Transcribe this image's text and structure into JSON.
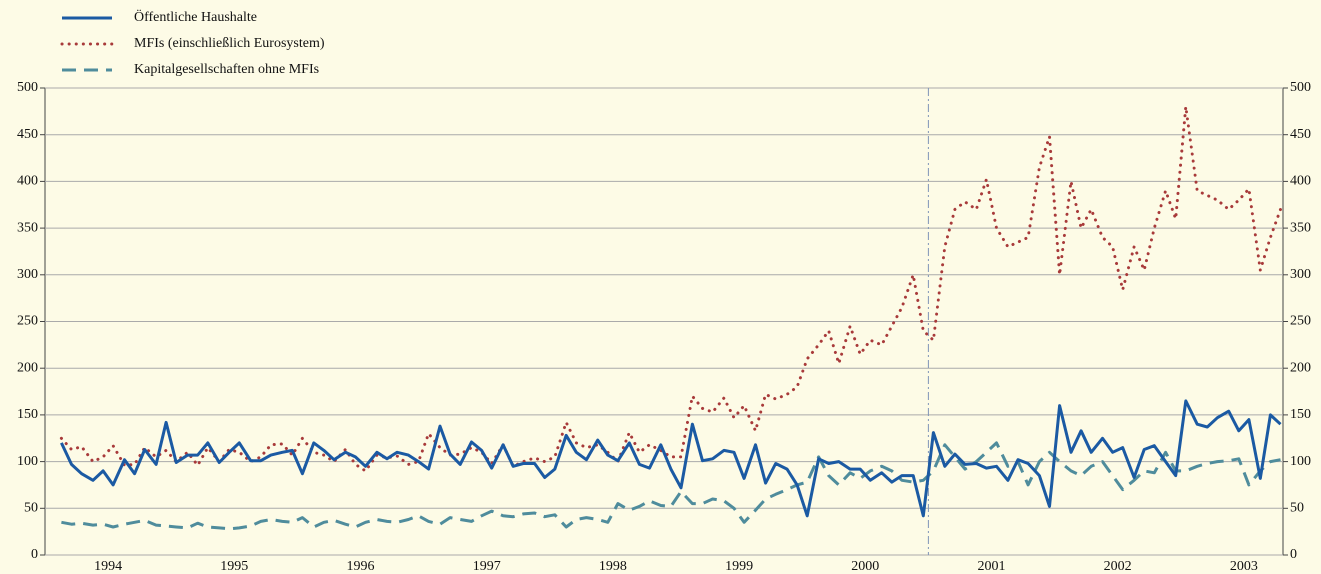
{
  "chart_data": {
    "type": "line",
    "legend": "top-left",
    "grid": true,
    "vline_x": 2001,
    "xlim": [
      1994,
      2003.81
    ],
    "xticks": [
      {
        "value": 1994.5,
        "label": "1994"
      },
      {
        "value": 1995.5,
        "label": "1995"
      },
      {
        "value": 1996.5,
        "label": "1996"
      },
      {
        "value": 1997.5,
        "label": "1997"
      },
      {
        "value": 1998.5,
        "label": "1998"
      },
      {
        "value": 1999.5,
        "label": "1999"
      },
      {
        "value": 2000.5,
        "label": "2000"
      },
      {
        "value": 2001.5,
        "label": "2001"
      },
      {
        "value": 2002.5,
        "label": "2002"
      },
      {
        "value": 2003.5,
        "label": "2003"
      }
    ],
    "ylim": [
      0,
      500
    ],
    "yticks": [
      0,
      50,
      100,
      150,
      200,
      250,
      300,
      350,
      400,
      450,
      500
    ],
    "x": [
      1994.13,
      1994.21,
      1994.29,
      1994.38,
      1994.46,
      1994.54,
      1994.63,
      1994.71,
      1994.79,
      1994.88,
      1994.96,
      1995.04,
      1995.13,
      1995.21,
      1995.29,
      1995.38,
      1995.46,
      1995.54,
      1995.63,
      1995.71,
      1995.79,
      1995.88,
      1995.96,
      1996.04,
      1996.13,
      1996.21,
      1996.29,
      1996.38,
      1996.46,
      1996.54,
      1996.63,
      1996.71,
      1996.79,
      1996.88,
      1996.96,
      1997.04,
      1997.13,
      1997.21,
      1997.29,
      1997.38,
      1997.46,
      1997.54,
      1997.63,
      1997.71,
      1997.79,
      1997.88,
      1997.96,
      1998.04,
      1998.13,
      1998.21,
      1998.29,
      1998.38,
      1998.46,
      1998.54,
      1998.63,
      1998.71,
      1998.79,
      1998.88,
      1998.96,
      1999.04,
      1999.13,
      1999.21,
      1999.29,
      1999.38,
      1999.46,
      1999.54,
      1999.63,
      1999.71,
      1999.79,
      1999.88,
      1999.96,
      2000.04,
      2000.13,
      2000.21,
      2000.29,
      2000.38,
      2000.46,
      2000.54,
      2000.63,
      2000.71,
      2000.79,
      2000.88,
      2000.96,
      2001.04,
      2001.13,
      2001.21,
      2001.29,
      2001.38,
      2001.46,
      2001.54,
      2001.63,
      2001.71,
      2001.79,
      2001.88,
      2001.96,
      2002.04,
      2002.13,
      2002.21,
      2002.29,
      2002.38,
      2002.46,
      2002.54,
      2002.63,
      2002.71,
      2002.79,
      2002.88,
      2002.96,
      2003.04,
      2003.13,
      2003.21,
      2003.29,
      2003.38,
      2003.46,
      2003.54,
      2003.63,
      2003.71,
      2003.79
    ],
    "series": [
      {
        "name": "Öffentliche Haushalte",
        "color": "#1b5aa3",
        "style": "solid",
        "values": [
          120,
          97,
          87,
          80,
          90,
          75,
          102,
          87,
          113,
          97,
          142,
          99,
          107,
          107,
          120,
          99,
          110,
          120,
          101,
          101,
          107,
          110,
          112,
          87,
          120,
          112,
          102,
          110,
          105,
          95,
          110,
          103,
          110,
          107,
          100,
          92,
          138,
          108,
          97,
          121,
          112,
          93,
          118,
          95,
          98,
          98,
          83,
          92,
          128,
          110,
          102,
          123,
          107,
          101,
          120,
          97,
          93,
          118,
          92,
          72,
          140,
          101,
          103,
          112,
          110,
          82,
          118,
          77,
          98,
          92,
          75,
          42,
          103,
          98,
          100,
          92,
          92,
          80,
          88,
          78,
          85,
          85,
          42,
          131,
          95,
          108,
          97,
          98,
          93,
          95,
          80,
          102,
          98,
          85,
          52,
          160,
          110,
          133,
          110,
          125,
          110,
          115,
          83,
          113,
          117,
          100,
          85,
          165,
          140,
          137,
          147,
          154,
          133,
          145,
          82,
          150,
          140
        ]
      },
      {
        "name": "MFIs (einschließlich Eurosystem)",
        "color": "#a83a3a",
        "style": "dotted",
        "values": [
          125,
          113,
          116,
          100,
          105,
          117,
          96,
          97,
          115,
          105,
          112,
          100,
          110,
          96,
          115,
          100,
          113,
          110,
          100,
          105,
          118,
          119,
          107,
          125,
          110,
          107,
          100,
          113,
          97,
          90,
          107,
          104,
          106,
          97,
          100,
          130,
          115,
          107,
          108,
          115,
          110,
          98,
          118,
          95,
          100,
          104,
          100,
          105,
          142,
          120,
          115,
          118,
          110,
          100,
          131,
          110,
          118,
          112,
          105,
          105,
          170,
          157,
          153,
          168,
          147,
          160,
          133,
          172,
          167,
          172,
          180,
          210,
          225,
          240,
          205,
          245,
          215,
          230,
          225,
          245,
          265,
          300,
          240,
          230,
          330,
          370,
          378,
          370,
          402,
          350,
          330,
          335,
          340,
          415,
          448,
          300,
          400,
          350,
          370,
          340,
          330,
          284,
          330,
          305,
          350,
          390,
          360,
          480,
          390,
          385,
          380,
          370,
          380,
          392,
          305,
          340,
          370
        ]
      },
      {
        "name": "Kapitalgesellschaften ohne MFIs",
        "color": "#4f8c9c",
        "style": "dashed",
        "values": [
          35,
          33,
          34,
          32,
          33,
          30,
          33,
          35,
          37,
          32,
          31,
          30,
          29,
          34,
          30,
          29,
          28,
          29,
          31,
          36,
          38,
          36,
          35,
          40,
          30,
          35,
          37,
          33,
          30,
          35,
          38,
          36,
          35,
          38,
          42,
          36,
          33,
          40,
          38,
          36,
          42,
          47,
          42,
          41,
          44,
          45,
          41,
          43,
          30,
          38,
          40,
          38,
          35,
          55,
          48,
          52,
          58,
          53,
          52,
          68,
          55,
          55,
          60,
          58,
          50,
          35,
          48,
          60,
          65,
          70,
          75,
          78,
          105,
          85,
          75,
          88,
          82,
          90,
          95,
          90,
          80,
          78,
          80,
          90,
          118,
          105,
          92,
          100,
          110,
          120,
          95,
          100,
          75,
          100,
          110,
          100,
          90,
          85,
          95,
          100,
          85,
          70,
          80,
          90,
          88,
          110,
          90,
          90,
          95,
          98,
          100,
          101,
          103,
          75,
          90,
          100,
          102
        ]
      }
    ]
  }
}
